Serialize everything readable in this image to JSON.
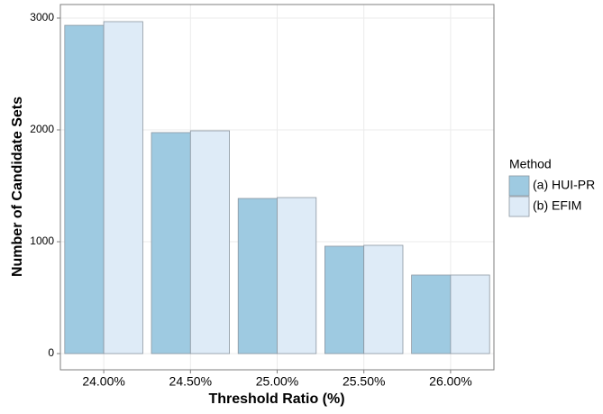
{
  "chart_data": {
    "type": "bar",
    "x_label": "Threshold Ratio (%)",
    "y_label": "Number of Candidate Sets",
    "categories": [
      "24.00%",
      "24.50%",
      "25.00%",
      "25.50%",
      "26.00%"
    ],
    "series": [
      {
        "name": "(a) HUI-PR",
        "color": "#9ecae1",
        "values": [
          2935,
          1976,
          1387,
          960,
          702
        ]
      },
      {
        "name": "(b) EFIM",
        "color": "#deebf7",
        "values": [
          2968,
          1992,
          1395,
          968,
          702
        ]
      }
    ],
    "legend_title": "Method",
    "legend_position": "right",
    "ylim": [
      -145,
      3121
    ],
    "yticks": [
      0,
      1000,
      2000,
      3000
    ],
    "grid": true
  }
}
